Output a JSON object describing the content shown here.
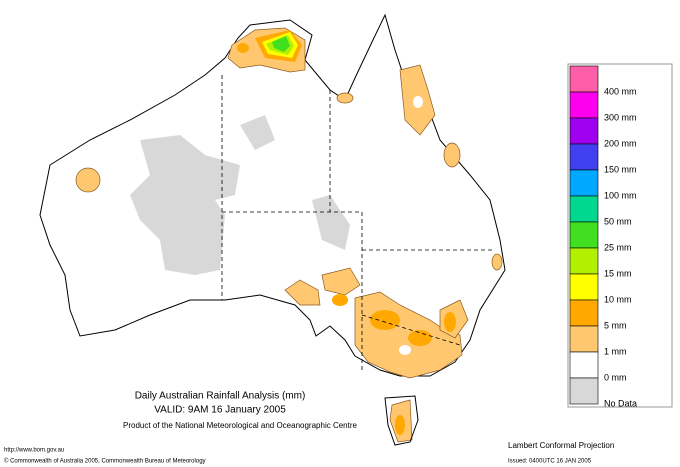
{
  "title": "Daily Australian Rainfall Analysis (mm)",
  "valid": "VALID: 9AM 16 January 2005",
  "product": "Product of the National Meteorological and Oceanographic Centre",
  "url": "http://www.bom.gov.au",
  "copyright": "© Commonwealth of Australia 2005, Commonwealth Bureau of Meteorology",
  "projection": "Lambert Conformal Projection",
  "issued": "Issued: 0400UTC 16 JAN 2005",
  "legend": {
    "labels": [
      "400 mm",
      "300 mm",
      "200 mm",
      "150 mm",
      "100 mm",
      "50 mm",
      "25 mm",
      "15 mm",
      "10 mm",
      "5 mm",
      "1 mm",
      "0 mm",
      "No Data"
    ],
    "colors": [
      "#ff5fa8",
      "#ff00ee",
      "#a000f0",
      "#4040f0",
      "#00a8ff",
      "#00d890",
      "#40e020",
      "#b0f000",
      "#ffff00",
      "#ffa800",
      "#ffc870",
      "#ffffff",
      "#d8d8d8"
    ]
  }
}
